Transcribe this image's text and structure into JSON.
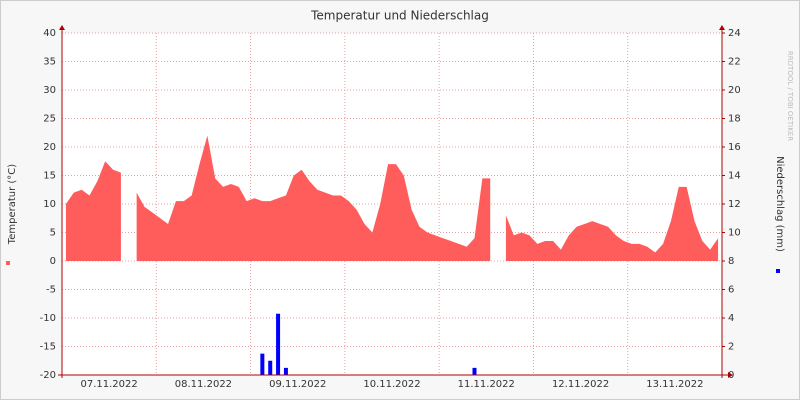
{
  "chart_data": {
    "type": "area",
    "title": "Temperatur und Niederschlag",
    "watermark": "RRDTOOL / TOBI OETIKER",
    "days": [
      "07.11.2022",
      "08.11.2022",
      "09.11.2022",
      "10.11.2022",
      "11.11.2022",
      "12.11.2022",
      "13.11.2022"
    ],
    "ylim": [
      -20,
      40
    ],
    "yticks": [
      40,
      35,
      30,
      25,
      20,
      15,
      10,
      5,
      0,
      -5,
      -10,
      -15,
      -20
    ],
    "y2lim": [
      0,
      24
    ],
    "y2ticks": [
      24,
      22,
      20,
      18,
      16,
      14,
      12,
      10,
      8,
      6,
      4,
      2,
      0
    ],
    "grid": true,
    "series": [
      {
        "name": "Temperatur (°C)",
        "color": "#ff5c5c",
        "type": "area",
        "values": [
          10,
          12,
          12.5,
          11.5,
          14,
          17.5,
          16,
          15.5,
          null,
          12,
          9.5,
          8.5,
          7.5,
          6.5,
          10.5,
          10.5,
          11.5,
          17,
          22,
          14.5,
          13,
          13.5,
          13,
          10.5,
          11,
          10.5,
          10.5,
          11,
          11.5,
          15,
          16,
          14,
          12.5,
          12,
          11.5,
          11.5,
          10.5,
          9,
          6.5,
          5,
          10,
          17,
          17,
          15,
          9,
          6,
          5,
          4.5,
          4,
          3.5,
          3,
          2.5,
          4,
          14.5,
          14.5,
          null,
          8,
          4.5,
          5,
          4.5,
          3,
          3.5,
          3.5,
          2,
          4.5,
          6,
          6.5,
          7,
          6.5,
          6,
          4.5,
          3.5,
          3,
          3,
          2.5,
          1.5,
          3,
          7,
          13,
          13,
          7,
          3.5,
          2,
          4
        ]
      },
      {
        "name": "Niederschlag (mm)",
        "color": "#0000ff",
        "type": "bar",
        "axis": "y2",
        "values": [
          0,
          0,
          0,
          0,
          0,
          0,
          0,
          0,
          0,
          0,
          0,
          0,
          0,
          0,
          0,
          0,
          0,
          0,
          0,
          0,
          0,
          0,
          0,
          0,
          0,
          1.5,
          1,
          4.3,
          0.5,
          0,
          0,
          0,
          0,
          0,
          0,
          0,
          0,
          0,
          0,
          0,
          0,
          0,
          0,
          0,
          0,
          0,
          0,
          0,
          0,
          0,
          0,
          0,
          0.5,
          0,
          0,
          0,
          0,
          0,
          0,
          0,
          0,
          0,
          0,
          0,
          0,
          0,
          0,
          0,
          0,
          0,
          0,
          0,
          0,
          0,
          0,
          0,
          0,
          0,
          0,
          0,
          0,
          0,
          0,
          0
        ]
      }
    ]
  }
}
